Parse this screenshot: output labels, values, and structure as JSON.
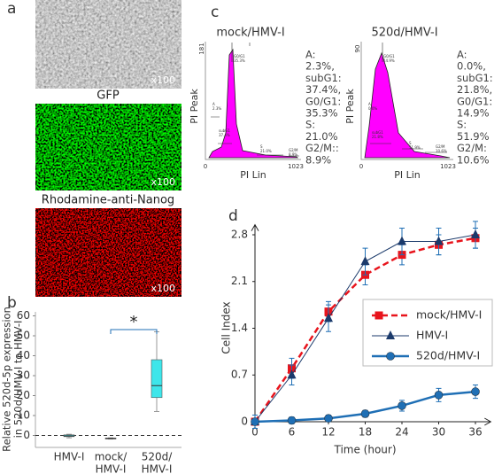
{
  "panel_labels": [
    "a",
    "b",
    "c",
    "d"
  ],
  "panel_a": {
    "images": [
      {
        "magnification": "x100"
      },
      {
        "title": "GFP",
        "magnification": "x100"
      },
      {
        "title": "Rhodamine-anti-Nanog",
        "magnification": "x100"
      }
    ]
  },
  "panel_c": {
    "histograms": [
      {
        "title": "mock/HMV-I",
        "y_axis_label": "PI Peak",
        "x_axis_label": "PI Lin",
        "y_max_label": "181",
        "x_min_label": "0",
        "x_max_label": "1023",
        "stats": [
          "A:",
          "2.3%,",
          "subG1:",
          "37.4%,",
          "G0/G1:",
          "35.3%",
          "S:",
          "21.0%",
          "G2/M::",
          "8.9%"
        ],
        "gates": [
          {
            "name": "A",
            "value": "2.3%"
          },
          {
            "name": "subG1",
            "value": "37.4%"
          },
          {
            "name": "G0/G1",
            "value": "35.3%"
          },
          {
            "name": "S",
            "value": "21.0%"
          },
          {
            "name": "G2/M",
            "value": "8.9%"
          }
        ]
      },
      {
        "title": "520d/HMV-I",
        "y_axis_label": "PI Peak",
        "x_axis_label": "PI Lin",
        "y_max_label": "90",
        "x_min_label": "0",
        "x_max_label": "1023",
        "stats": [
          "A:",
          "0.0%,",
          "subG1:",
          "21.8%,",
          "G0/G1:",
          "14.9%",
          "S:",
          "51.9%",
          "G2/M:",
          "10.6%"
        ],
        "gates": [
          {
            "name": "A",
            "value": "0.0%"
          },
          {
            "name": "subG1",
            "value": "21.8%"
          },
          {
            "name": "G0/G1",
            "value": "14.9%"
          },
          {
            "name": "S",
            "value": "51.9%"
          },
          {
            "name": "G2/M",
            "value": "10.6%"
          }
        ]
      }
    ]
  },
  "chart_data": [
    {
      "type": "box",
      "y_axis_label": [
        "Relative 520d-5p expression",
        "in 520d/HMV-I to HMV-I"
      ],
      "categories": [
        [
          "HMV-I"
        ],
        [
          "mock/",
          "HMV-I"
        ],
        [
          "520d/",
          "HMV-I"
        ]
      ],
      "color": "#3ee6ea",
      "boxes": [
        {
          "min": -1.2,
          "q1": -0.6,
          "median": -0.2,
          "q3": 0.3,
          "max": 0.6
        },
        {
          "min": -1.8,
          "q1": -1.6,
          "median": -1.5,
          "q3": -1.3,
          "max": -1.2
        },
        {
          "min": 12,
          "q1": 19,
          "median": 25,
          "q3": 38,
          "max": 52
        }
      ],
      "ylim": [
        -6,
        62
      ],
      "yticks": [
        0,
        10,
        20,
        30,
        40,
        50,
        60
      ],
      "reference_line": 0,
      "significance": {
        "pair": [
          1,
          2
        ],
        "label": "*"
      }
    },
    {
      "type": "line",
      "x_axis_label": "Time (hour)",
      "y_axis_label": "Cell Index",
      "x": [
        0,
        6,
        12,
        18,
        24,
        30,
        36
      ],
      "xlim": [
        0,
        38.5
      ],
      "ylim": [
        0,
        2.95
      ],
      "xticks": [
        0,
        6,
        12,
        18,
        24,
        30,
        36
      ],
      "yticks": [
        0,
        0.7,
        1.4,
        2.1,
        2.8
      ],
      "legend": "center-right",
      "series": [
        {
          "name": "mock/HMV-I",
          "color": "#e8141c",
          "marker": "square",
          "line_style": "dashed",
          "line_width": 2.5,
          "values": [
            0,
            0.8,
            1.65,
            2.2,
            2.5,
            2.65,
            2.75
          ],
          "errors": [
            0.1,
            0.15,
            0.15,
            0.15,
            0.15,
            0.15,
            0.15
          ]
        },
        {
          "name": "HMV-I",
          "color": "#1b3a6b",
          "marker": "triangle",
          "line_style": "solid",
          "line_width": 1,
          "values": [
            0,
            0.7,
            1.55,
            2.4,
            2.7,
            2.7,
            2.8
          ],
          "errors": [
            0.1,
            0.15,
            0.2,
            0.2,
            0.2,
            0.2,
            0.2
          ]
        },
        {
          "name": "520d/HMV-I",
          "color": "#1f6fb5",
          "marker": "circle",
          "line_style": "solid",
          "line_width": 2.5,
          "values": [
            0,
            0.02,
            0.05,
            0.12,
            0.24,
            0.4,
            0.45
          ],
          "errors": [
            0.1,
            0.05,
            0.05,
            0.05,
            0.08,
            0.1,
            0.1
          ]
        }
      ]
    }
  ]
}
